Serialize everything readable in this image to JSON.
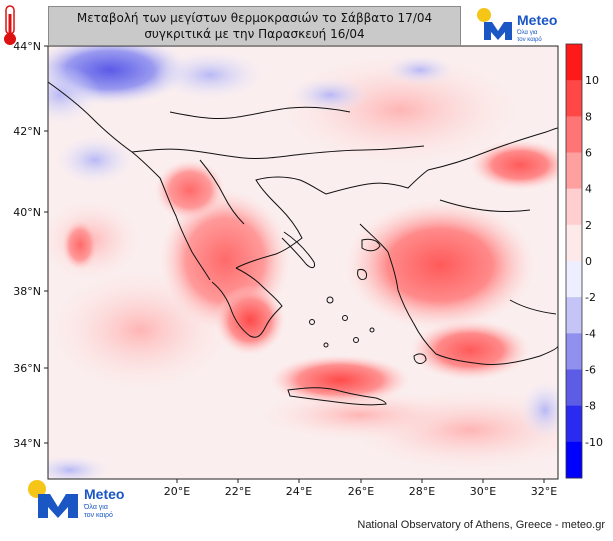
{
  "title": {
    "line1": "Μεταβολή των μεγίστων θερμοκρασιών το Σάββατο 17/04",
    "line2": "συγκριτικά με την Παρασκευή 16/04"
  },
  "brand": {
    "name": "Meteo",
    "tagline_line1": "Όλα για",
    "tagline_line2": "τον καιρό",
    "color_blue": "#1a56c4",
    "color_yellow": "#f5c518"
  },
  "axes": {
    "lat_labels": [
      "44°N",
      "42°N",
      "40°N",
      "38°N",
      "36°N",
      "34°N"
    ],
    "lon_labels": [
      "20°E",
      "22°E",
      "24°E",
      "26°E",
      "28°E",
      "30°E",
      "32°E"
    ]
  },
  "colorbar": {
    "labels": [
      "10",
      "8",
      "6",
      "4",
      "2",
      "0",
      "-2",
      "-4",
      "-6",
      "-8",
      "-10"
    ],
    "colors": [
      "#ff1a1a",
      "#ff4747",
      "#ff7474",
      "#ffa0a0",
      "#ffcfcf",
      "#fde9e9",
      "#eeeeff",
      "#c4c4f7",
      "#9090ee",
      "#5c5ce6",
      "#2a2af0",
      "#0000ff"
    ]
  },
  "credit": "National Observatory of Athens, Greece - meteo.gr",
  "icons": {
    "thermometer": "thermometer-icon",
    "logo": "meteo-logo"
  }
}
